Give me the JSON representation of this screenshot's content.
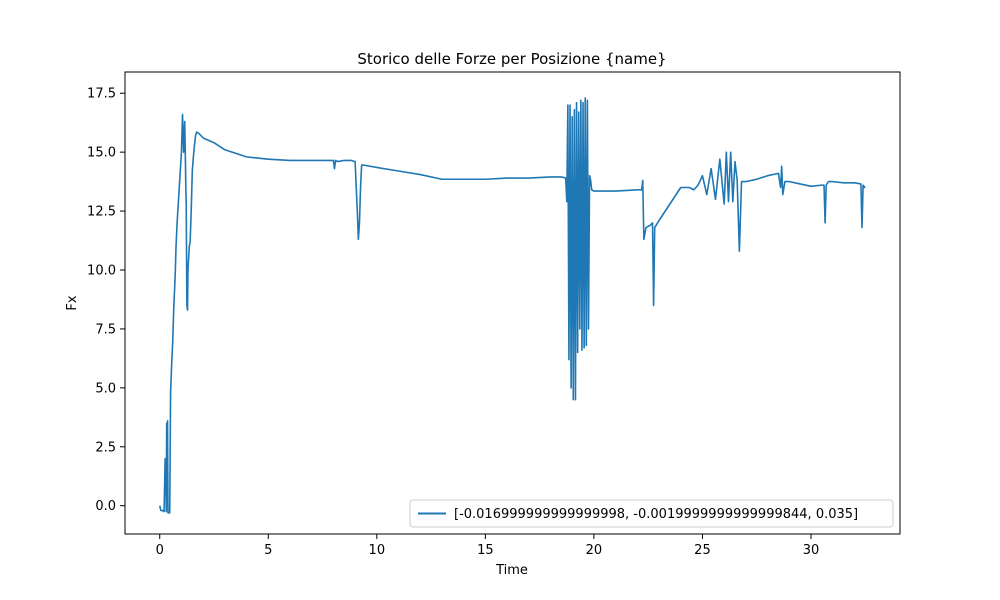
{
  "chart_data": {
    "type": "line",
    "title": "Storico delle Forze per Posizione {name}",
    "xlabel": "Time",
    "ylabel": "Fx",
    "xlim": [
      -1.6,
      34.1
    ],
    "ylim": [
      -1.2,
      18.4
    ],
    "xticks": [
      0,
      5,
      10,
      15,
      20,
      25,
      30
    ],
    "xtick_labels": [
      "0",
      "5",
      "10",
      "15",
      "20",
      "25",
      "30"
    ],
    "yticks": [
      0.0,
      2.5,
      5.0,
      7.5,
      10.0,
      12.5,
      15.0,
      17.5
    ],
    "ytick_labels": [
      "0.0",
      "2.5",
      "5.0",
      "7.5",
      "10.0",
      "12.5",
      "15.0",
      "17.5"
    ],
    "grid": false,
    "legend_position": "lower-right",
    "series": [
      {
        "name": "[-0.016999999999999998, -0.0019999999999999844, 0.035]",
        "color": "#1f77b4",
        "x": [
          0.0,
          0.05,
          0.12,
          0.2,
          0.25,
          0.26,
          0.28,
          0.3,
          0.32,
          0.34,
          0.36,
          0.38,
          0.4,
          0.42,
          0.44,
          0.46,
          0.5,
          0.55,
          0.6,
          0.65,
          0.7,
          0.72,
          0.75,
          0.8,
          0.9,
          1.0,
          1.05,
          1.1,
          1.15,
          1.18,
          1.2,
          1.22,
          1.25,
          1.28,
          1.3,
          1.33,
          1.36,
          1.4,
          1.45,
          1.5,
          1.55,
          1.6,
          1.65,
          1.7,
          1.8,
          1.9,
          2.0,
          2.5,
          3.0,
          4.0,
          5.0,
          6.0,
          7.0,
          8.0,
          8.05,
          8.1,
          8.2,
          8.5,
          8.8,
          9.0,
          9.1,
          9.15,
          9.2,
          9.25,
          9.3,
          9.4,
          10.0,
          11.0,
          12.0,
          13.0,
          14.0,
          15.0,
          16.0,
          17.0,
          18.0,
          18.5,
          18.7,
          18.75,
          18.8,
          18.85,
          18.9,
          18.95,
          19.0,
          19.05,
          19.1,
          19.15,
          19.2,
          19.25,
          19.3,
          19.35,
          19.4,
          19.45,
          19.5,
          19.55,
          19.6,
          19.65,
          19.7,
          19.75,
          19.8,
          19.85,
          19.9,
          20.0,
          21.0,
          22.0,
          22.2,
          22.25,
          22.3,
          22.4,
          22.6,
          22.7,
          22.75,
          22.8,
          23.0,
          23.5,
          24.0,
          24.2,
          24.4,
          24.6,
          24.8,
          25.0,
          25.2,
          25.4,
          25.6,
          25.8,
          26.0,
          26.1,
          26.2,
          26.3,
          26.4,
          26.5,
          26.6,
          26.7,
          26.8,
          27.0,
          27.5,
          28.0,
          28.5,
          28.6,
          28.65,
          28.7,
          28.8,
          29.0,
          29.5,
          30.0,
          30.5,
          30.6,
          30.65,
          30.7,
          30.8,
          31.0,
          31.5,
          32.0,
          32.3,
          32.35,
          32.4,
          32.45,
          32.5
        ],
        "y": [
          0.0,
          -0.2,
          -0.2,
          -0.25,
          2.0,
          0.5,
          2.0,
          -0.25,
          3.5,
          0.0,
          3.6,
          -0.3,
          -0.3,
          -0.3,
          -0.3,
          -0.3,
          4.8,
          6.0,
          7.0,
          8.5,
          9.5,
          10.0,
          11.0,
          12.0,
          13.5,
          15.0,
          16.6,
          15.0,
          16.3,
          14.8,
          13.6,
          12.8,
          8.5,
          8.3,
          10.0,
          10.5,
          11.0,
          11.2,
          12.5,
          14.2,
          14.8,
          15.3,
          15.7,
          15.85,
          15.8,
          15.7,
          15.6,
          15.4,
          15.1,
          14.8,
          14.7,
          14.65,
          14.65,
          14.65,
          14.3,
          14.65,
          14.6,
          14.65,
          14.65,
          14.6,
          12.5,
          11.3,
          12.0,
          13.5,
          14.45,
          14.45,
          14.35,
          14.2,
          14.05,
          13.85,
          13.85,
          13.85,
          13.9,
          13.9,
          13.95,
          13.95,
          13.9,
          12.9,
          17.0,
          6.2,
          17.0,
          5.0,
          16.5,
          4.5,
          16.8,
          4.5,
          17.1,
          6.5,
          16.7,
          7.5,
          17.2,
          6.6,
          17.1,
          6.7,
          17.3,
          6.8,
          17.2,
          7.5,
          14.0,
          13.8,
          13.4,
          13.35,
          13.35,
          13.4,
          13.4,
          13.8,
          11.3,
          11.8,
          11.9,
          12.0,
          8.5,
          11.8,
          12.1,
          12.8,
          13.5,
          13.5,
          13.5,
          13.4,
          13.6,
          14.0,
          13.2,
          14.3,
          13.0,
          14.7,
          12.8,
          15.0,
          12.9,
          15.0,
          12.9,
          14.6,
          13.8,
          10.8,
          13.75,
          13.75,
          13.85,
          14.0,
          14.1,
          13.5,
          14.4,
          13.2,
          13.75,
          13.75,
          13.65,
          13.55,
          13.6,
          13.6,
          12.0,
          13.6,
          13.75,
          13.75,
          13.7,
          13.7,
          13.65,
          11.8,
          13.6,
          13.5,
          13.55
        ]
      }
    ]
  }
}
